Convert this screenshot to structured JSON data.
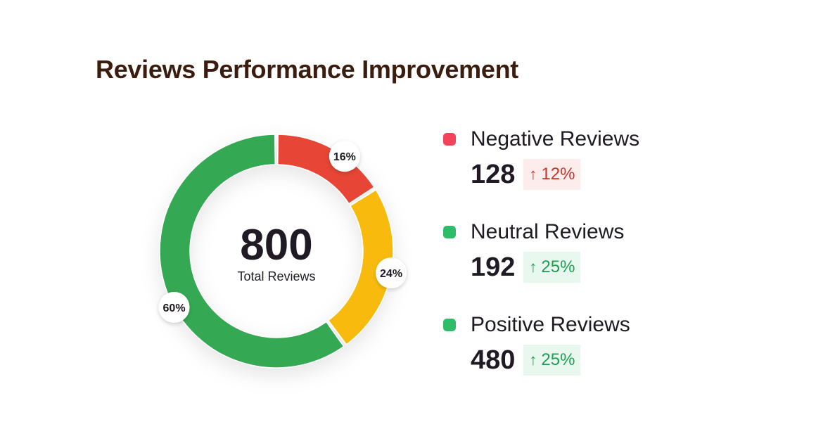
{
  "title": "Reviews Performance Improvement",
  "chart_data": {
    "type": "donut",
    "title": "Reviews Performance Improvement",
    "center_value": "800",
    "center_label": "Total Reviews",
    "total": 800,
    "series": [
      {
        "name": "Negative Reviews",
        "value": 128,
        "percent": 16,
        "percent_label": "16%",
        "change": "12%",
        "change_direction": "up",
        "color": "#e74536",
        "swatch_color": "#f4445c",
        "badge_bg": "#fdecec",
        "badge_color": "#c0392b"
      },
      {
        "name": "Neutral Reviews",
        "value": 192,
        "percent": 24,
        "percent_label": "24%",
        "change": "25%",
        "change_direction": "up",
        "color": "#f8bb07",
        "swatch_color": "#2ebc68",
        "badge_bg": "#e8f8ee",
        "badge_color": "#1f9e53"
      },
      {
        "name": "Positive Reviews",
        "value": 480,
        "percent": 60,
        "percent_label": "60%",
        "change": "25%",
        "change_direction": "up",
        "color": "#34a853",
        "swatch_color": "#2ebc68",
        "badge_bg": "#e8f8ee",
        "badge_color": "#1f9e53"
      }
    ]
  },
  "legend": [
    {
      "name": "Negative Reviews",
      "count": "128",
      "change": "12%",
      "arrow_icon": "arrow-up-icon",
      "swatch_color": "#f4445c",
      "badge_bg": "#fdecec",
      "badge_color": "#c0392b"
    },
    {
      "name": "Neutral Reviews",
      "count": "192",
      "change": "25%",
      "arrow_icon": "arrow-up-icon",
      "swatch_color": "#2ebc68",
      "badge_bg": "#e8f8ee",
      "badge_color": "#1f9e53"
    },
    {
      "name": "Positive Reviews",
      "count": "480",
      "change": "25%",
      "arrow_icon": "arrow-up-icon",
      "swatch_color": "#2ebc68",
      "badge_bg": "#e8f8ee",
      "badge_color": "#1f9e53"
    }
  ]
}
